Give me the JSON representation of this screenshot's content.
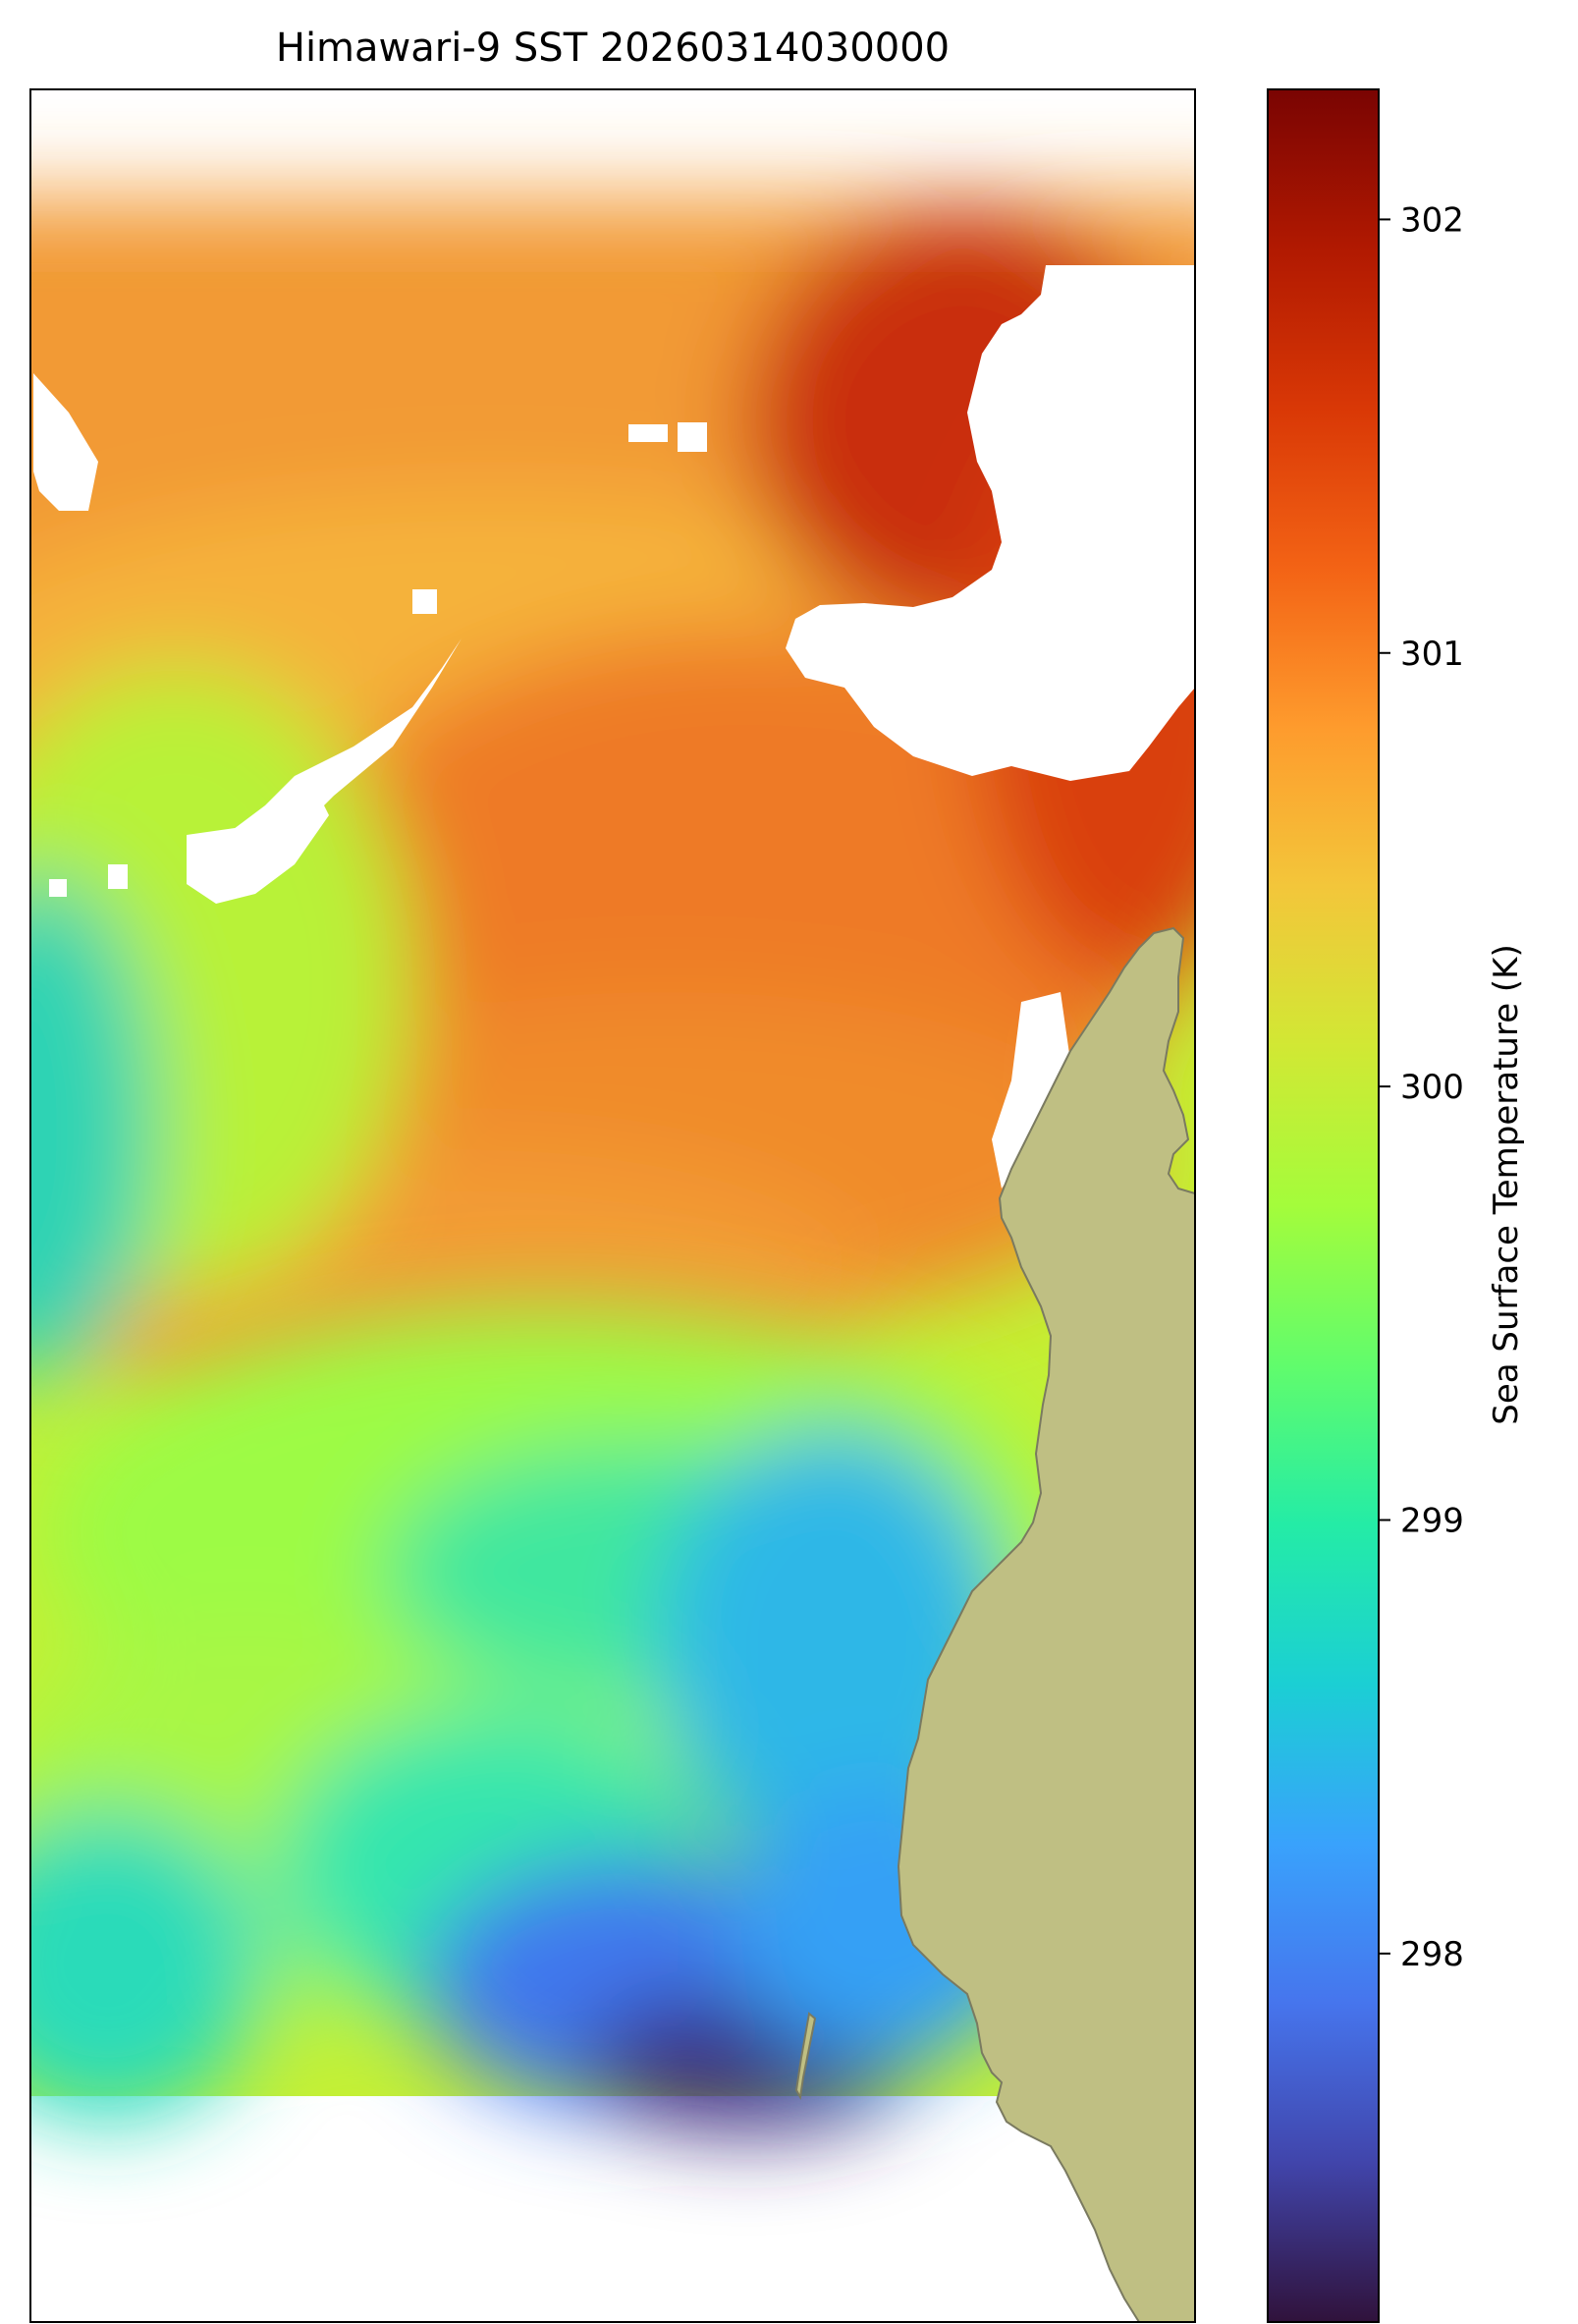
{
  "title": "Himawari-9 SST 20260314030000",
  "colorbar": {
    "label": "Sea Surface Temperature (K)",
    "min": 297.15,
    "max": 302.3,
    "ticks": [
      {
        "value": 298,
        "label": "298"
      },
      {
        "value": 299,
        "label": "299"
      },
      {
        "value": 300,
        "label": "300"
      },
      {
        "value": 301,
        "label": "301"
      },
      {
        "value": 302,
        "label": "302"
      }
    ],
    "colormap": "turbo",
    "stops": [
      "#30123b",
      "#4145ab",
      "#4675ed",
      "#39a2fc",
      "#1bcfd4",
      "#24eca6",
      "#61fc6c",
      "#a4fc3b",
      "#d1e834",
      "#f3c63a",
      "#fe9b2d",
      "#f36315",
      "#d93806",
      "#b11901",
      "#7a0402"
    ]
  },
  "map": {
    "land_color": "#bfbf83",
    "coast_color": "#7a7a60",
    "missing_color": "#ffffff"
  }
}
